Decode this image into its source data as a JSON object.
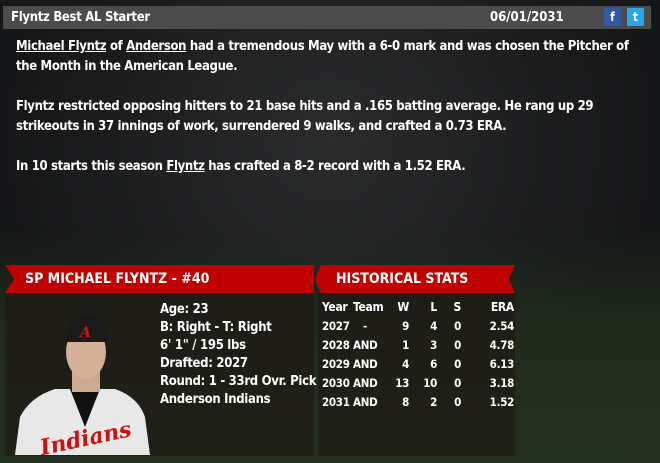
{
  "header": {
    "title": "Flyntz Best AL Starter",
    "date": "06/01/2031",
    "facebook_icon": "facebook-icon",
    "twitter_icon": "twitter-icon",
    "facebook_glyph": "f",
    "twitter_glyph": "t"
  },
  "story": {
    "p1": {
      "player": "Michael Flyntz",
      "of": " of ",
      "team": "Anderson",
      "rest": " had a tremendous May with a 6-0 mark and was chosen the Pitcher of the Month in the American League."
    },
    "p2": "Flyntz restricted opposing hitters to 21 base hits and a .165 batting average. He rang up 29 strikeouts in 37 innings of work, surrendered 9 walks, and crafted a 0.73 ERA.",
    "p3": {
      "pre": "In 10 starts this season ",
      "player": "Flyntz",
      "rest": " has crafted a 8-2 record with a 1.52 ERA."
    }
  },
  "player": {
    "banner": "SP MICHAEL FLYNTZ - #40",
    "age": "Age: 23",
    "bats_throws": "B: Right - T: Right",
    "height_weight": "6' 1\" / 195 lbs",
    "drafted": "Drafted: 2027",
    "round": "Round: 1 - 33rd Ovr. Pick",
    "team": "Anderson Indians"
  },
  "stats": {
    "banner": "HISTORICAL STATS",
    "headers": [
      "Year",
      "Team",
      "W",
      "L",
      "S",
      "ERA"
    ],
    "rows": [
      [
        "2027",
        "-",
        "9",
        "4",
        "0",
        "2.54"
      ],
      [
        "2028",
        "AND",
        "1",
        "3",
        "0",
        "4.78"
      ],
      [
        "2029",
        "AND",
        "4",
        "6",
        "0",
        "6.13"
      ],
      [
        "2030",
        "AND",
        "13",
        "10",
        "0",
        "3.18"
      ],
      [
        "2031",
        "AND",
        "8",
        "2",
        "0",
        "1.52"
      ]
    ]
  },
  "colors": {
    "banner_red": "#c00000",
    "facebook": "#2f5aa8",
    "twitter": "#29a8e8"
  }
}
